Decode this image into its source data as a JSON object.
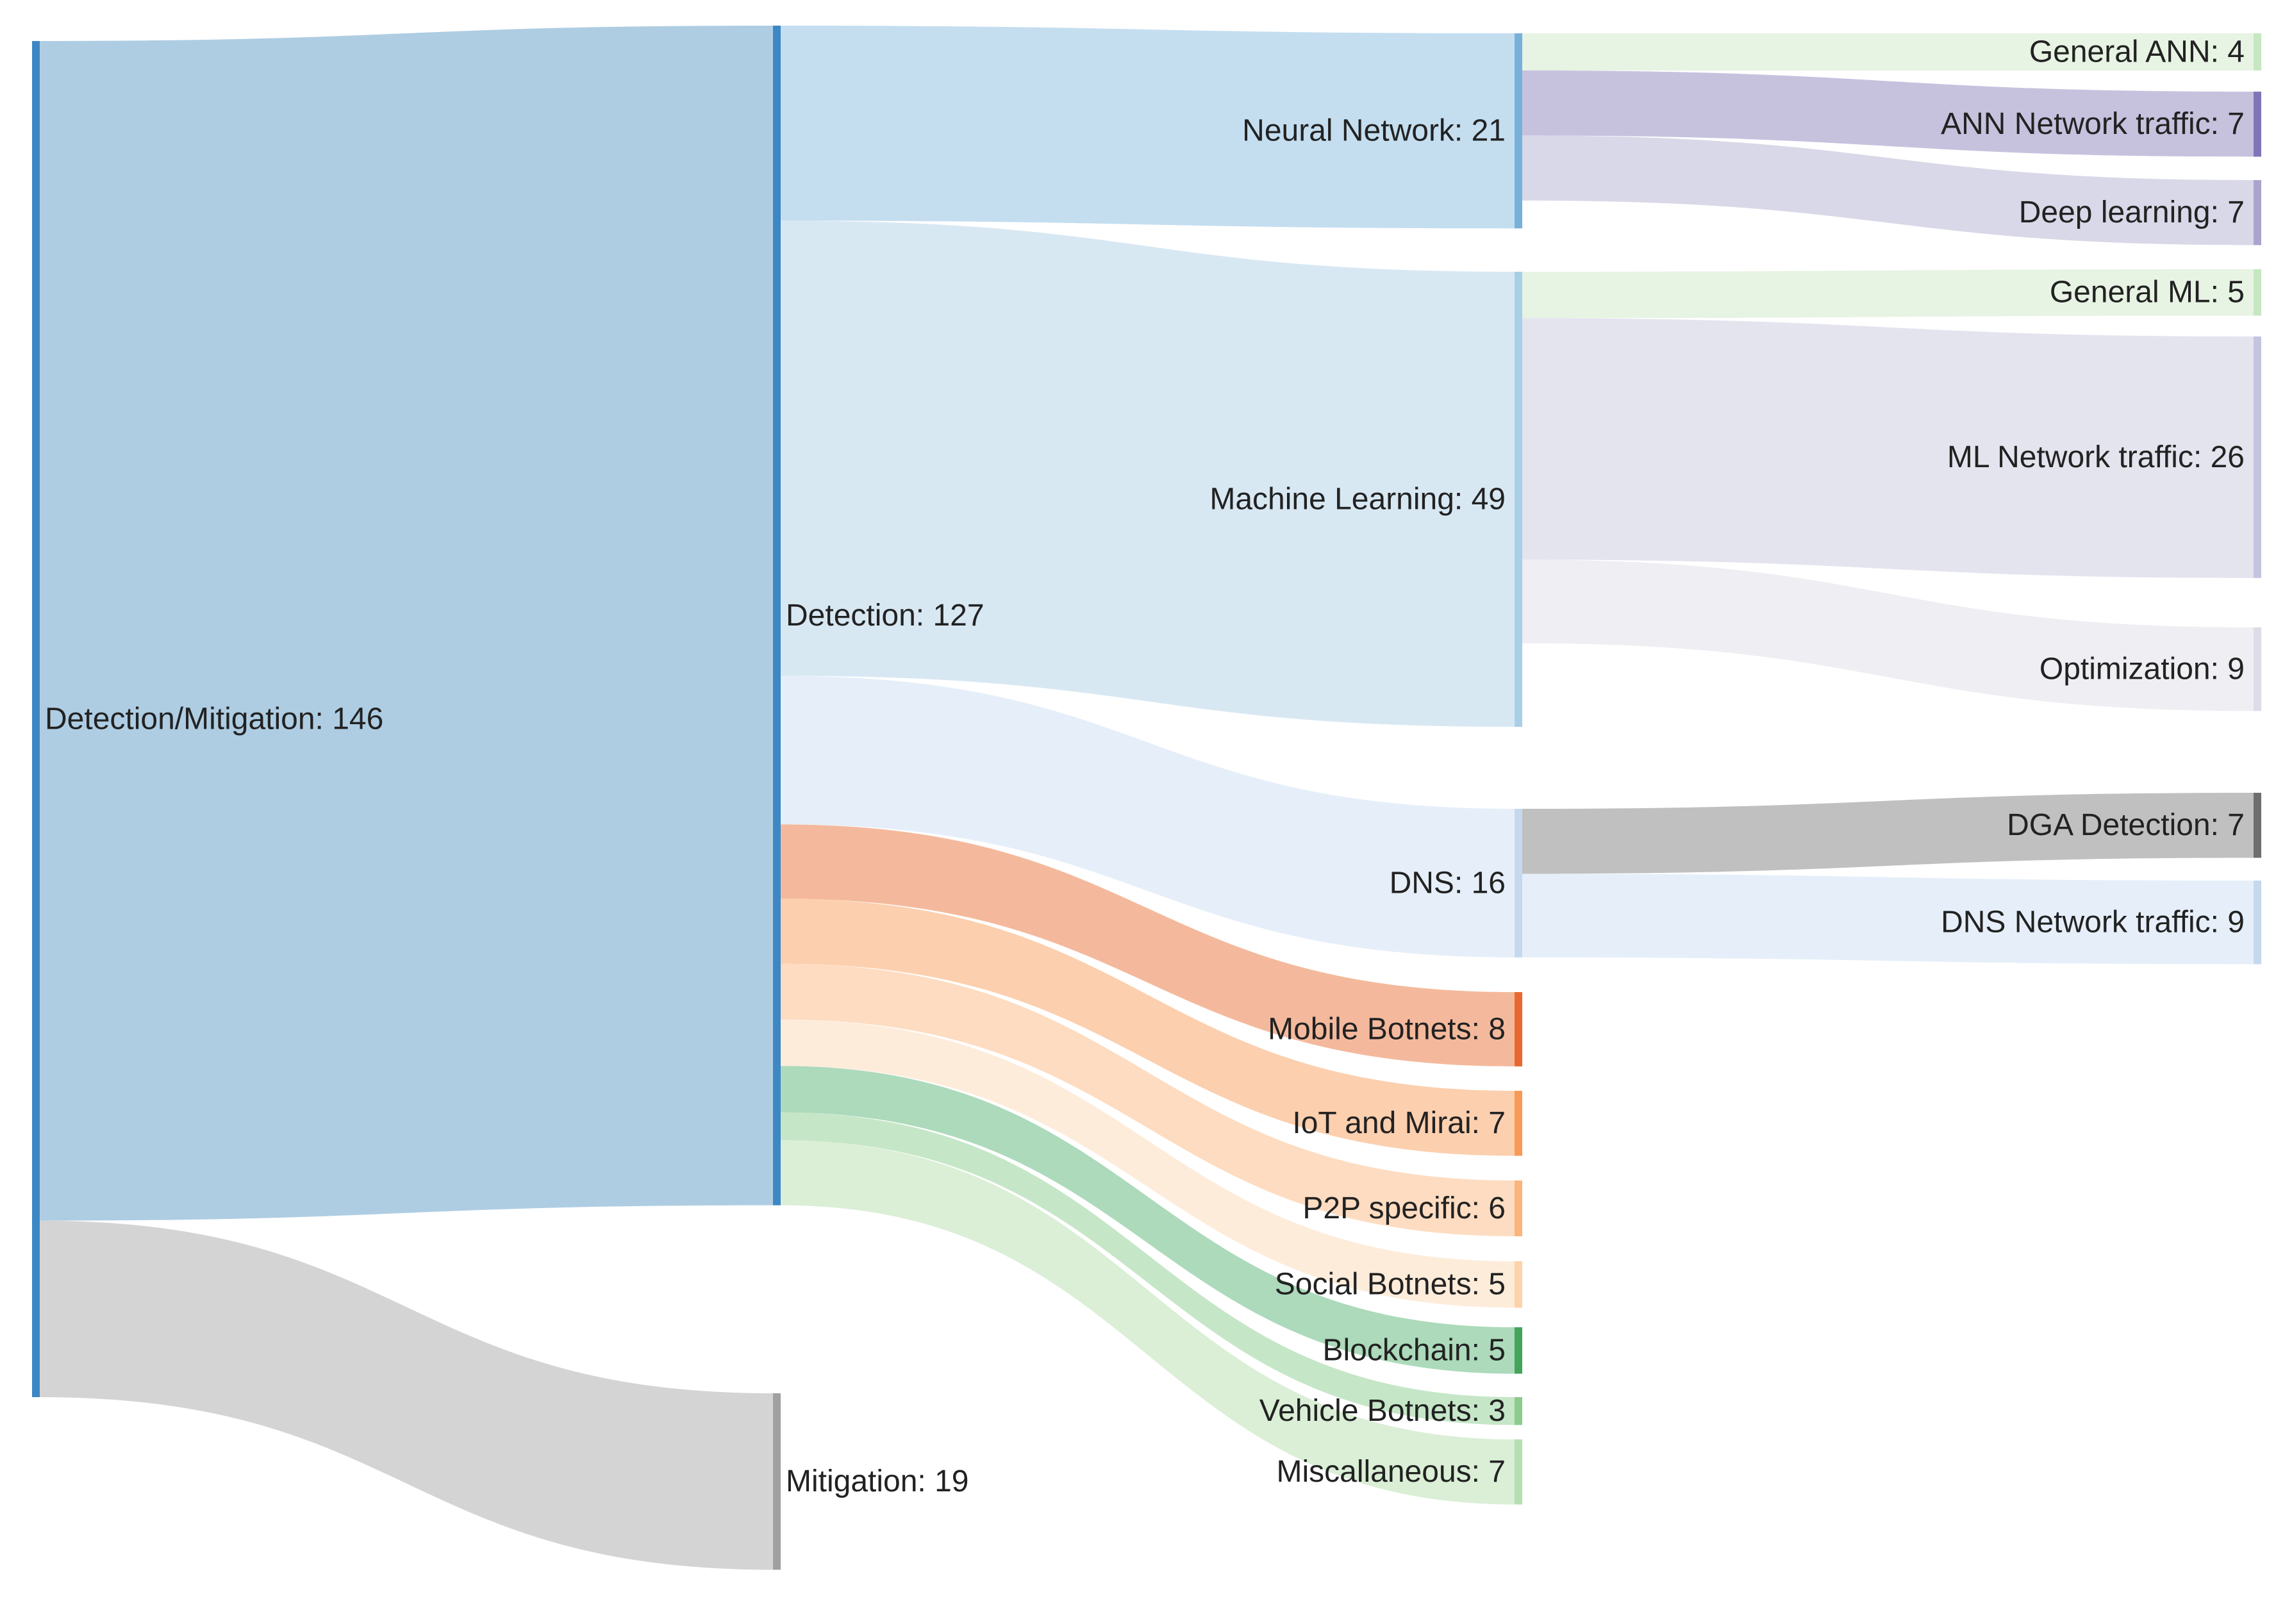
{
  "chart_data": {
    "type": "sankey",
    "nodes": [
      {
        "id": "dm",
        "label": "Detection/Mitigation: 146",
        "value": 146,
        "color": "#3d87c4"
      },
      {
        "id": "det",
        "label": "Detection: 127",
        "value": 127,
        "color": "#3d87c4"
      },
      {
        "id": "mit",
        "label": "Mitigation: 19",
        "value": 19,
        "color": "#a0a0a0"
      },
      {
        "id": "nn",
        "label": "Neural Network: 21",
        "value": 21,
        "color": "#77b1da"
      },
      {
        "id": "ml",
        "label": "Machine Learning: 49",
        "value": 49,
        "color": "#a8cfe6"
      },
      {
        "id": "dns",
        "label": "DNS: 16",
        "value": 16,
        "color": "#c4d9ee"
      },
      {
        "id": "mob",
        "label": "Mobile Botnets: 8",
        "value": 8,
        "color": "#e8692f"
      },
      {
        "id": "iot",
        "label": "IoT and Mirai: 7",
        "value": 7,
        "color": "#f79a55"
      },
      {
        "id": "p2p",
        "label": "P2P specific: 6",
        "value": 6,
        "color": "#fbb47c"
      },
      {
        "id": "soc",
        "label": "Social Botnets: 5",
        "value": 5,
        "color": "#fdd3a9"
      },
      {
        "id": "blk",
        "label": "Blockchain: 5",
        "value": 5,
        "color": "#43a45c"
      },
      {
        "id": "veh",
        "label": "Vehicle Botnets: 3",
        "value": 3,
        "color": "#8ccb8b"
      },
      {
        "id": "misc",
        "label": "Miscallaneous: 7",
        "value": 7,
        "color": "#b4dfb0"
      },
      {
        "id": "gann",
        "label": "General ANN: 4",
        "value": 4,
        "color": "#c5e8c0"
      },
      {
        "id": "annt",
        "label": "ANN Network traffic: 7",
        "value": 7,
        "color": "#7e76b6"
      },
      {
        "id": "dl",
        "label": "Deep learning: 7",
        "value": 7,
        "color": "#a9a5cc"
      },
      {
        "id": "gml",
        "label": "General ML: 5",
        "value": 5,
        "color": "#c5e8c0"
      },
      {
        "id": "mlnt",
        "label": "ML Network traffic: 26",
        "value": 26,
        "color": "#c4c3e0"
      },
      {
        "id": "opt",
        "label": "Optimization: 9",
        "value": 9,
        "color": "#dddde9"
      },
      {
        "id": "dga",
        "label": "DGA Detection: 7",
        "value": 7,
        "color": "#6e6e6e"
      },
      {
        "id": "dnst",
        "label": "DNS Network traffic: 9",
        "value": 9,
        "color": "#c4d9ee"
      }
    ],
    "links": [
      {
        "source": "dm",
        "target": "det",
        "value": 127,
        "color": "#aecde3"
      },
      {
        "source": "dm",
        "target": "mit",
        "value": 19,
        "color": "#d4d4d4"
      },
      {
        "source": "det",
        "target": "nn",
        "value": 21,
        "color": "#c4def0"
      },
      {
        "source": "det",
        "target": "ml",
        "value": 49,
        "color": "#d8e8f3"
      },
      {
        "source": "det",
        "target": "dns",
        "value": 16,
        "color": "#e6eff9"
      },
      {
        "source": "det",
        "target": "mob",
        "value": 8,
        "color": "#f4b99c"
      },
      {
        "source": "det",
        "target": "iot",
        "value": 7,
        "color": "#fccfae"
      },
      {
        "source": "det",
        "target": "p2p",
        "value": 6,
        "color": "#fddcc1"
      },
      {
        "source": "det",
        "target": "soc",
        "value": 5,
        "color": "#feecdb"
      },
      {
        "source": "det",
        "target": "blk",
        "value": 5,
        "color": "#acdabb"
      },
      {
        "source": "det",
        "target": "veh",
        "value": 3,
        "color": "#c6e6c8"
      },
      {
        "source": "det",
        "target": "misc",
        "value": 7,
        "color": "#daefd6"
      },
      {
        "source": "nn",
        "target": "gann",
        "value": 4,
        "color": "#e7f3e3"
      },
      {
        "source": "nn",
        "target": "annt",
        "value": 7,
        "color": "#c6c2de"
      },
      {
        "source": "nn",
        "target": "dl",
        "value": 7,
        "color": "#d9d8e8"
      },
      {
        "source": "ml",
        "target": "gml",
        "value": 5,
        "color": "#e7f3e3"
      },
      {
        "source": "ml",
        "target": "mlnt",
        "value": 26,
        "color": "#e4e4ef"
      },
      {
        "source": "ml",
        "target": "opt",
        "value": 9,
        "color": "#eeeef3"
      },
      {
        "source": "dns",
        "target": "dga",
        "value": 7,
        "color": "#c0c0c0"
      },
      {
        "source": "dns",
        "target": "dnst",
        "value": 9,
        "color": "#e6eff9"
      }
    ]
  }
}
